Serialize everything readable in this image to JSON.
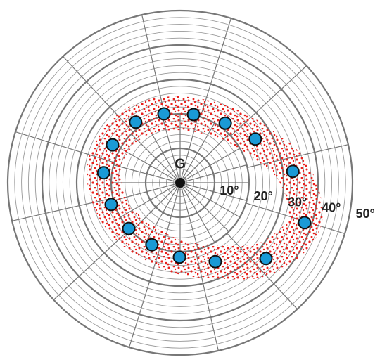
{
  "chart_data": {
    "type": "polar_scatter",
    "center_label": "G",
    "rlim": [
      0,
      50
    ],
    "rticks": [
      {
        "value": 10,
        "label": "10°"
      },
      {
        "value": 20,
        "label": "20°"
      },
      {
        "value": 30,
        "label": "30°"
      },
      {
        "value": 40,
        "label": "40°"
      },
      {
        "value": 50,
        "label": "50°"
      }
    ],
    "series": [
      {
        "color": "#1a9ad6",
        "x": [
          -22.2,
          -19.6,
          -12.9,
          -4.7,
          3.9,
          13.1,
          21.8,
          32.7,
          36.1,
          24.9,
          10.2,
          -0.2,
          -8.2,
          -14.9,
          -20.0
        ],
        "y": [
          2.9,
          11.0,
          17.6,
          20.0,
          19.8,
          17.3,
          12.7,
          3.3,
          -11.6,
          -22.0,
          -22.9,
          -21.6,
          -18.0,
          -13.3,
          -6.3
        ]
      }
    ]
  }
}
